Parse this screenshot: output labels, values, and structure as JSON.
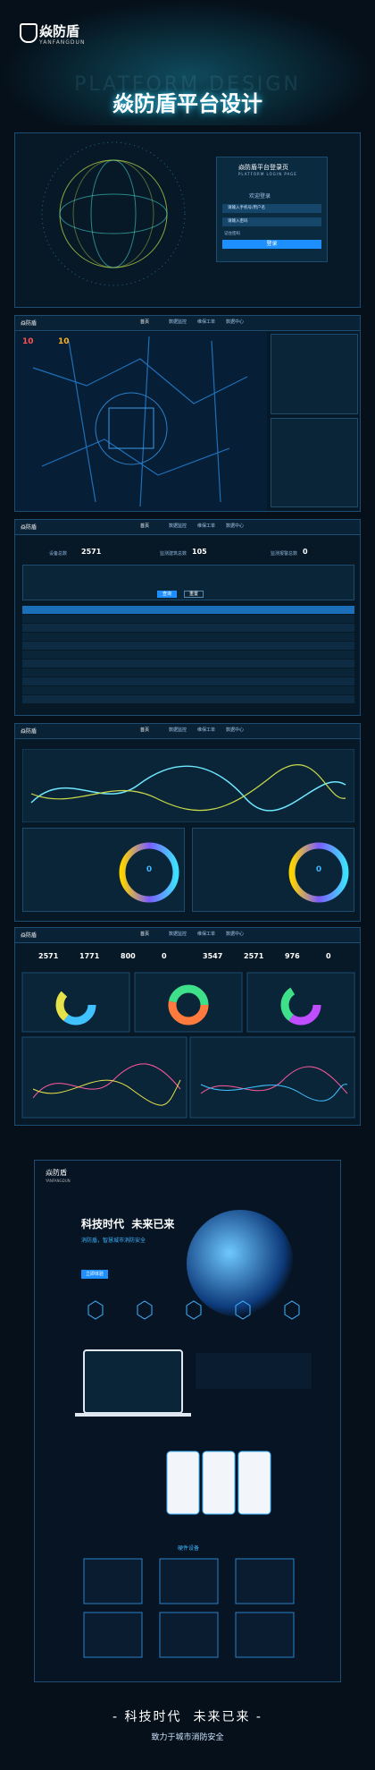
{
  "header": {
    "logo": "焱防盾",
    "logo_sub": "YANFANGDUN",
    "watermark": "PLATFORM DESIGN",
    "title": "焱防盾平台设计"
  },
  "login": {
    "title": "焱防盾平台登录页",
    "subtitle": "PLATFORM LOGIN PAGE",
    "welcome": "欢迎登录",
    "username": "请输入手机号/用户名",
    "password": "请输入密码",
    "remember": "记住密码",
    "button": "登录"
  },
  "nav": [
    "首页",
    "数据监控",
    "维保工单",
    "数据中心"
  ],
  "map": {
    "logo": "焱防盾",
    "stats": [
      10,
      10
    ]
  },
  "table": {
    "stats": [
      {
        "label": "设备总数",
        "value": 2571
      },
      {
        "label": "监测建筑总数",
        "value": 105
      },
      {
        "label": "监测报警总数",
        "value": 0
      }
    ],
    "query": "查询",
    "reset": "重置"
  },
  "charts": {
    "donuts": [
      0,
      0
    ]
  },
  "overview": {
    "stats": [
      2571,
      1771,
      800,
      0,
      3547,
      2571,
      976,
      0
    ]
  },
  "site": {
    "logo": "焱防盾",
    "logo_sub": "YANFANGDUN",
    "slogan": "科技时代  未来已来",
    "tagline": "消防盾，智慧城市消防安全",
    "button": "立即体验",
    "section": "硬件设备"
  },
  "footer": {
    "slogan": "- 科技时代  未来已来 -",
    "tagline": "致力于城市消防安全"
  }
}
